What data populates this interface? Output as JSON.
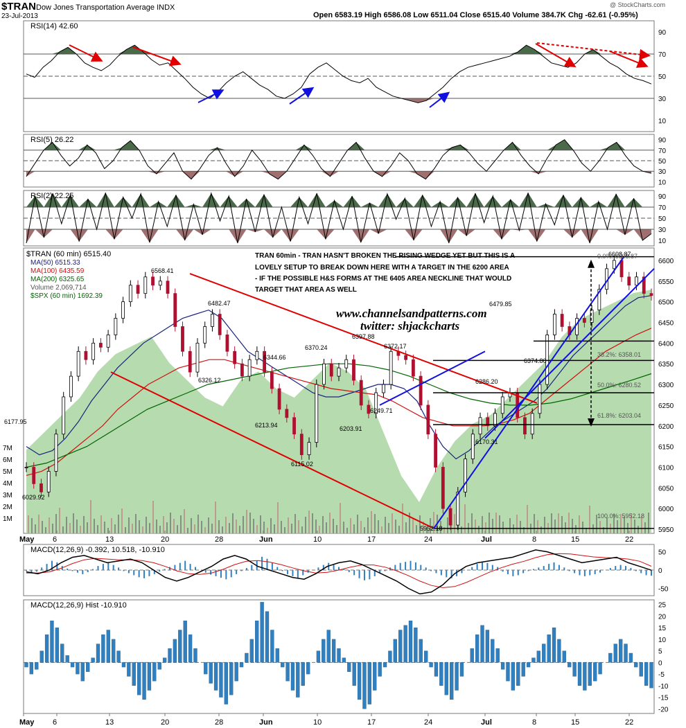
{
  "header": {
    "symbol": "$TRAN",
    "name": "Dow Jones Transportation Average INDX",
    "date": "23-Jul-2013",
    "quote": "Open 6583.19  High 6586.08  Low 6511.04  Close 6515.40  Volume 384.7K  Chg -62.61 (-0.95%)",
    "watermark": "@ StockCharts.com"
  },
  "colors": {
    "price_up": "#000000",
    "price_down": "#b01030",
    "ma50": "#1a237e",
    "ma100": "#d01010",
    "ma200": "#006400",
    "spx_fill": "#a8d5a0",
    "annotation_red": "#e00000",
    "annotation_blue": "#1010e0",
    "rsi_overbought": "#4a6a4a",
    "rsi_oversold": "#a07070",
    "macd_line": "#000000",
    "macd_signal": "#d01010",
    "macd_hist": "#3080c0"
  },
  "chart_data": [
    {
      "type": "line",
      "panel": "rsi14",
      "label": "RSI(14) 42.60",
      "yticks": [
        10,
        30,
        50,
        70,
        90
      ],
      "ylim": [
        0,
        100
      ],
      "levels": [
        30,
        50,
        70
      ],
      "series": [
        {
          "name": "RSI(14)",
          "values": [
            52,
            49,
            58,
            64,
            72,
            76,
            70,
            62,
            58,
            55,
            60,
            68,
            74,
            78,
            72,
            65,
            60,
            62,
            55,
            48,
            40,
            34,
            30,
            36,
            44,
            50,
            54,
            48,
            42,
            38,
            32,
            30,
            34,
            40,
            52,
            58,
            62,
            56,
            50,
            46,
            44,
            48,
            40,
            36,
            32,
            30,
            28,
            26,
            28,
            34,
            40,
            48,
            54,
            58,
            60,
            62,
            64,
            66,
            68,
            72,
            78,
            74,
            68,
            62,
            60,
            58,
            62,
            70,
            74,
            68,
            62,
            58,
            52,
            48,
            46,
            43
          ]
        }
      ],
      "annotations": {
        "last_value": 42.6
      }
    },
    {
      "type": "line",
      "panel": "rsi5",
      "label": "RSI(5) 26.22",
      "yticks": [
        10,
        30,
        50,
        70,
        90
      ],
      "ylim": [
        0,
        100
      ],
      "levels": [
        30,
        50,
        70
      ],
      "series": [
        {
          "name": "RSI(5)",
          "values": [
            20,
            45,
            70,
            85,
            60,
            40,
            55,
            80,
            65,
            35,
            50,
            75,
            88,
            70,
            40,
            25,
            45,
            65,
            30,
            15,
            35,
            60,
            75,
            45,
            20,
            40,
            70,
            50,
            25,
            15,
            30,
            55,
            80,
            60,
            35,
            20,
            45,
            70,
            85,
            55,
            30,
            20,
            40,
            65,
            50,
            25,
            15,
            35,
            60,
            75,
            80,
            65,
            45,
            30,
            50,
            70,
            85,
            60,
            40,
            25,
            55,
            80,
            90,
            70,
            45,
            30,
            50,
            75,
            85,
            60,
            40,
            30,
            26
          ]
        }
      ]
    },
    {
      "type": "line",
      "panel": "rsi2",
      "label": "RSI(2) 22.25",
      "yticks": [
        10,
        30,
        50,
        70,
        90
      ],
      "ylim": [
        0,
        100
      ],
      "levels": [
        30,
        50,
        70
      ],
      "series": [
        {
          "name": "RSI(2)",
          "values": [
            5,
            90,
            15,
            95,
            40,
            92,
            8,
            85,
            30,
            96,
            12,
            88,
            50,
            94,
            6,
            80,
            35,
            92,
            10,
            75,
            20,
            95,
            45,
            90,
            5,
            85,
            25,
            93,
            15,
            70,
            8,
            88,
            40,
            95,
            12,
            82,
            30,
            90,
            6,
            78,
            22,
            94,
            48,
            86,
            10,
            92,
            35,
            80,
            5,
            88,
            18,
            95,
            42,
            90,
            12,
            84,
            28,
            96,
            8,
            76,
            38,
            92,
            15,
            88,
            5,
            80,
            30,
            94,
            20,
            86,
            10,
            22
          ]
        }
      ]
    },
    {
      "type": "line",
      "panel": "price",
      "title": "$TRAN (60 min) 6515.40",
      "legend": [
        "MA(50) 6515.33",
        "MA(100) 6435.59",
        "MA(200) 6325.65",
        "Volume 2,069,714",
        "$SPX (60 min) 1692.39"
      ],
      "xlabels": [
        "May",
        "6",
        "13",
        "20",
        "28",
        "Jun",
        "10",
        "17",
        "24",
        "Jul",
        "8",
        "15",
        "22"
      ],
      "yticks": [
        5950,
        6000,
        6050,
        6100,
        6150,
        6200,
        6250,
        6300,
        6350,
        6400,
        6450,
        6500,
        6550,
        6600
      ],
      "ylim": [
        5940,
        6630
      ],
      "volume_ticks": [
        "1M",
        "2M",
        "3M",
        "4M",
        "5M",
        "6M",
        "7M"
      ],
      "series": [
        {
          "name": "$TRAN",
          "values": [
            6100,
            6060,
            6040,
            6090,
            6180,
            6270,
            6320,
            6380,
            6360,
            6400,
            6390,
            6420,
            6460,
            6500,
            6540,
            6520,
            6560,
            6540,
            6550,
            6520,
            6440,
            6380,
            6330,
            6400,
            6440,
            6470,
            6420,
            6380,
            6350,
            6320,
            6360,
            6380,
            6330,
            6290,
            6240,
            6220,
            6180,
            6130,
            6160,
            6300,
            6350,
            6320,
            6340,
            6360,
            6310,
            6250,
            6230,
            6280,
            6300,
            6380,
            6370,
            6360,
            6320,
            6250,
            6180,
            6100,
            6000,
            5960,
            6040,
            6120,
            6180,
            6220,
            6200,
            6230,
            6270,
            6280,
            6220,
            6180,
            6230,
            6300,
            6420,
            6470,
            6440,
            6420,
            6460,
            6450,
            6480,
            6530,
            6580,
            6600,
            6560,
            6540,
            6560,
            6520,
            6515
          ]
        },
        {
          "name": "MA(50)",
          "values": [
            6150,
            6130,
            6140,
            6170,
            6210,
            6260,
            6300,
            6340,
            6370,
            6400,
            6420,
            6440,
            6460,
            6470,
            6480,
            6460,
            6420,
            6380,
            6360,
            6340,
            6320,
            6300,
            6280,
            6270,
            6270,
            6280,
            6290,
            6300,
            6300,
            6290,
            6260,
            6200,
            6150,
            6120,
            6140,
            6170,
            6200,
            6220,
            6240,
            6260,
            6290,
            6330,
            6370,
            6400,
            6430,
            6460,
            6490,
            6510,
            6515
          ]
        },
        {
          "name": "MA(100)",
          "values": [
            6080,
            6090,
            6110,
            6140,
            6170,
            6200,
            6240,
            6270,
            6300,
            6320,
            6340,
            6350,
            6360,
            6360,
            6350,
            6340,
            6330,
            6320,
            6310,
            6300,
            6290,
            6285,
            6280,
            6275,
            6260,
            6240,
            6220,
            6210,
            6200,
            6200,
            6200,
            6205,
            6215,
            6230,
            6260,
            6290,
            6320,
            6350,
            6380,
            6400,
            6420,
            6436
          ]
        },
        {
          "name": "MA(200)",
          "values": [
            6100,
            6110,
            6130,
            6150,
            6180,
            6210,
            6240,
            6260,
            6280,
            6300,
            6310,
            6320,
            6330,
            6340,
            6345,
            6350,
            6350,
            6345,
            6335,
            6320,
            6300,
            6280,
            6265,
            6255,
            6250,
            6250,
            6255,
            6265,
            6280,
            6295,
            6310,
            6326
          ]
        },
        {
          "name": "$SPX (60 min)",
          "values": [
            1600,
            1610,
            1620,
            1630,
            1645,
            1655,
            1660,
            1665,
            1650,
            1640,
            1630,
            1625,
            1640,
            1645,
            1635,
            1630,
            1640,
            1650,
            1645,
            1635,
            1610,
            1585,
            1570,
            1590,
            1605,
            1615,
            1620,
            1630,
            1640,
            1650,
            1665,
            1675,
            1680,
            1685,
            1690,
            1692
          ]
        }
      ],
      "price_labels": [
        {
          "text": "6177.95"
        },
        {
          "text": "6029.92"
        },
        {
          "text": "6568.41"
        },
        {
          "text": "6482.47"
        },
        {
          "text": "6326.12"
        },
        {
          "text": "6344.66"
        },
        {
          "text": "6213.94"
        },
        {
          "text": "6115.02"
        },
        {
          "text": "6370.24"
        },
        {
          "text": "6397.88"
        },
        {
          "text": "6372.17"
        },
        {
          "text": "6203.91"
        },
        {
          "text": "6249.71"
        },
        {
          "text": "5952.18"
        },
        {
          "text": "6286.20"
        },
        {
          "text": "6170.31"
        },
        {
          "text": "6479.85"
        },
        {
          "text": "6374.80"
        },
        {
          "text": "6608.87"
        }
      ],
      "fib_labels": [
        {
          "text": "38.2%: 6358.01"
        },
        {
          "text": "50.0%: 6280.52"
        },
        {
          "text": "61.8%: 6203.04"
        },
        {
          "text": "100.0%: 5952.18"
        },
        {
          "text": "0.0%: 6608.87"
        }
      ],
      "notes": {
        "comment_lines": [
          "TRAN 60min - TRAN HASN'T BROKEN THE RISING WEDGE YET BUT THIS IS A",
          "LOVELY SETUP TO BREAK DOWN HERE WITH A TARGET IN THE 6200 AREA",
          "- IF THE POSSIBLE H&S FORMS AT THE 6405 AREA NECKLINE THAT WOULD",
          "TARGET THAT AREA AS WELL"
        ],
        "website": "www.channelsandpatterns.com",
        "twitter": "twitter: shjackcharts"
      }
    },
    {
      "type": "line",
      "panel": "macd",
      "label": "MACD(12,26,9) -0.392, 10.518, -10.910",
      "yticks": [
        -50,
        0,
        50
      ],
      "ylim": [
        -70,
        70
      ],
      "series": [
        {
          "name": "MACD(12,26,9)",
          "values": [
            -5,
            -10,
            0,
            20,
            35,
            40,
            30,
            20,
            25,
            30,
            20,
            0,
            -20,
            -30,
            -20,
            -5,
            10,
            30,
            40,
            30,
            10,
            0,
            -10,
            -20,
            -25,
            -10,
            10,
            20,
            25,
            15,
            0,
            -15,
            -30,
            -50,
            -65,
            -60,
            -40,
            -10,
            10,
            20,
            25,
            30,
            35,
            45,
            55,
            50,
            40,
            30,
            20,
            25,
            30,
            35,
            20,
            10,
            -0.4
          ]
        },
        {
          "name": "Signal",
          "values": [
            -8,
            -8,
            -5,
            5,
            18,
            28,
            32,
            30,
            28,
            28,
            26,
            20,
            10,
            -2,
            -10,
            -12,
            -8,
            2,
            15,
            24,
            26,
            22,
            15,
            6,
            -2,
            -8,
            -6,
            0,
            8,
            14,
            14,
            8,
            -2,
            -15,
            -30,
            -42,
            -48,
            -45,
            -34,
            -20,
            -6,
            6,
            16,
            24,
            34,
            42,
            45,
            44,
            40,
            36,
            34,
            33,
            30,
            24,
            10.5
          ]
        }
      ]
    },
    {
      "type": "bar",
      "panel": "macd_hist",
      "label": "MACD(12,26,9) Hist -10.910",
      "yticks": [
        -20,
        -15,
        -10,
        -5,
        0,
        5,
        10,
        15,
        20,
        25
      ],
      "ylim": [
        -22,
        27
      ],
      "series": [
        {
          "name": "Hist",
          "values": [
            -2,
            -5,
            -3,
            5,
            12,
            18,
            15,
            8,
            3,
            -2,
            -5,
            -8,
            -4,
            2,
            8,
            12,
            14,
            10,
            5,
            -2,
            -6,
            -10,
            -14,
            -16,
            -12,
            -8,
            -3,
            2,
            6,
            10,
            14,
            18,
            12,
            6,
            0,
            -5,
            -9,
            -12,
            -15,
            -18,
            -14,
            -8,
            -2,
            4,
            10,
            18,
            26,
            22,
            14,
            6,
            -2,
            -8,
            -12,
            -15,
            -10,
            -5,
            0,
            5,
            10,
            14,
            10,
            6,
            2,
            -4,
            -10,
            -16,
            -20,
            -18,
            -12,
            -6,
            -2,
            5,
            10,
            14,
            16,
            18,
            15,
            10,
            5,
            -2,
            -6,
            -10,
            -14,
            -16,
            -12,
            -6,
            0,
            6,
            12,
            16,
            14,
            10,
            6,
            -3,
            -8,
            -12,
            -10,
            -6,
            -2,
            2,
            5,
            8,
            12,
            15,
            10,
            5,
            -2,
            -6,
            -10,
            -12,
            -10,
            -8,
            -5,
            0,
            4,
            8,
            10,
            8,
            4,
            -2,
            -6,
            -10,
            -11
          ]
        }
      ]
    }
  ]
}
